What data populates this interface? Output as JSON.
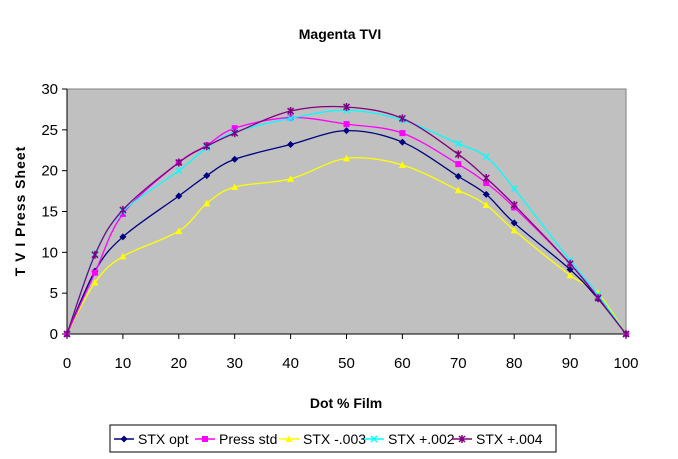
{
  "chart_data": {
    "type": "line",
    "title": "Magenta TVI",
    "xlabel": "Dot % Film",
    "ylabel": "T V I  Press Sheet",
    "xlim": [
      0,
      100
    ],
    "ylim": [
      0,
      30
    ],
    "xticks": [
      0,
      10,
      20,
      30,
      40,
      50,
      60,
      70,
      80,
      90,
      100
    ],
    "yticks": [
      0,
      5,
      10,
      15,
      20,
      25,
      30
    ],
    "grid": false,
    "legend_position": "bottom",
    "plot_background": "#c0c0c0",
    "series": [
      {
        "name": "STX opt",
        "color": "#000080",
        "marker": "diamond",
        "x": [
          0,
          5,
          10,
          20,
          25,
          30,
          40,
          50,
          60,
          70,
          75,
          80,
          90,
          95,
          100
        ],
        "y": [
          0,
          7.7,
          11.9,
          16.9,
          19.4,
          21.4,
          23.2,
          24.9,
          23.5,
          19.3,
          17.1,
          13.6,
          7.9,
          4.3,
          0
        ]
      },
      {
        "name": "Press std",
        "color": "#ff00ff",
        "marker": "square",
        "x": [
          0,
          5,
          10,
          20,
          25,
          30,
          40,
          50,
          60,
          70,
          75,
          80,
          90,
          95,
          100
        ],
        "y": [
          0,
          7.5,
          14.7,
          21.0,
          23.1,
          25.2,
          26.5,
          25.7,
          24.6,
          20.8,
          18.5,
          15.5,
          8.6,
          4.5,
          0
        ]
      },
      {
        "name": "STX -.003",
        "color": "#ffff00",
        "marker": "triangle",
        "x": [
          0,
          5,
          10,
          20,
          25,
          30,
          40,
          50,
          60,
          70,
          75,
          80,
          90,
          95,
          100
        ],
        "y": [
          0,
          6.3,
          9.5,
          12.6,
          16.0,
          18.0,
          19.0,
          21.5,
          20.7,
          17.6,
          15.8,
          12.7,
          7.2,
          5.0,
          0
        ]
      },
      {
        "name": "STX +.002",
        "color": "#00ffff",
        "marker": "x",
        "x": [
          0,
          5,
          10,
          20,
          25,
          30,
          40,
          50,
          60,
          70,
          75,
          80,
          90,
          95,
          100
        ],
        "y": [
          0,
          9.8,
          15.0,
          20.0,
          22.8,
          24.7,
          26.4,
          27.4,
          26.2,
          23.3,
          21.7,
          17.8,
          9.0,
          4.8,
          0
        ]
      },
      {
        "name": "STX +.004",
        "color": "#800080",
        "marker": "star",
        "x": [
          0,
          5,
          10,
          20,
          25,
          30,
          40,
          50,
          60,
          70,
          75,
          80,
          90,
          95,
          100
        ],
        "y": [
          0,
          9.7,
          15.2,
          21.0,
          23.0,
          24.6,
          27.3,
          27.8,
          26.4,
          22.0,
          19.1,
          15.8,
          8.6,
          4.4,
          0
        ]
      }
    ]
  }
}
